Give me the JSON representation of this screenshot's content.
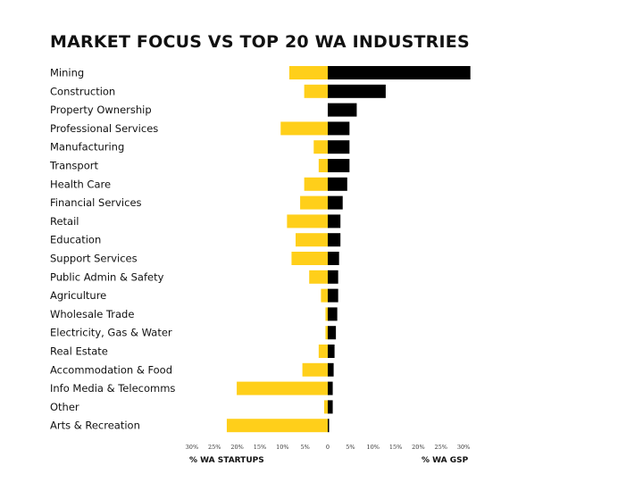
{
  "chart_data": {
    "type": "bar",
    "title": "MARKET FOCUS VS TOP 20 WA INDUSTRIES",
    "categories": [
      "Mining",
      "Construction",
      "Property Ownership",
      "Professional Services",
      "Manufacturing",
      "Transport",
      "Health Care",
      "Financial Services",
      "Retail",
      "Education",
      "Support Services",
      "Public Admin & Safety",
      "Agriculture",
      "Wholesale Trade",
      "Electricity, Gas & Water",
      "Real Estate",
      "Accommodation & Food",
      "Info Media & Telecomms",
      "Other",
      "Arts & Recreation"
    ],
    "series": [
      {
        "name": "% WA STARTUPS",
        "color": "#FFCF1A",
        "values": [
          8.5,
          5.2,
          0,
          10.4,
          3.1,
          2.0,
          5.2,
          6.1,
          9.0,
          7.1,
          8.0,
          4.1,
          1.5,
          0.5,
          0.5,
          2.0,
          5.6,
          20.1,
          0.8,
          22.3
        ]
      },
      {
        "name": "% WA GSP",
        "color": "#000000",
        "values": [
          31.5,
          12.8,
          6.4,
          4.8,
          4.8,
          4.8,
          4.3,
          3.3,
          2.8,
          2.8,
          2.5,
          2.3,
          2.3,
          2.1,
          1.8,
          1.5,
          1.3,
          1.1,
          1.1,
          0.3
        ]
      }
    ],
    "xticks_left": [
      "30%",
      "25%",
      "20%",
      "15%",
      "10%",
      "5%",
      "0"
    ],
    "xticks_right": [
      "5%",
      "10%",
      "15%",
      "20%",
      "25%",
      "30%"
    ],
    "xlabel_left": "% WA STARTUPS",
    "xlabel_right": "% WA GSP",
    "xlim": [
      -30,
      30
    ]
  }
}
